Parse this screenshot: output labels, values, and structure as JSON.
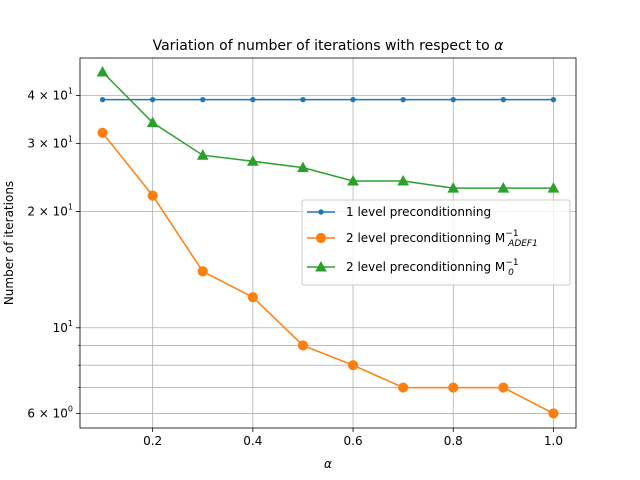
{
  "chart_data": {
    "type": "line",
    "title": "Variation of number of iterations with respect to",
    "title_symbol": "α",
    "xlabel": "α",
    "ylabel": "Number of iterations",
    "xscale": "linear",
    "yscale": "log",
    "xlim": [
      0.055,
      1.045
    ],
    "ylim": [
      5.5,
      50
    ],
    "xticks": [
      0.2,
      0.4,
      0.6,
      0.8,
      1.0
    ],
    "xtick_labels": [
      "0.2",
      "0.4",
      "0.6",
      "0.8",
      "1.0"
    ],
    "yticks": [
      {
        "value": 6,
        "mantissa": "6",
        "exp": "0"
      },
      {
        "value": 10,
        "mantissa": "10",
        "exp": "1"
      },
      {
        "value": 20,
        "mantissa": "2",
        "exp": "1"
      },
      {
        "value": 30,
        "mantissa": "3",
        "exp": "1"
      },
      {
        "value": 40,
        "mantissa": "4",
        "exp": "1"
      }
    ],
    "y_minor_grid": [
      7,
      8,
      9
    ],
    "grid": true,
    "legend_position": "center-right",
    "x": [
      0.1,
      0.2,
      0.3,
      0.4,
      0.5,
      0.6,
      0.7,
      0.8,
      0.9,
      1.0
    ],
    "series": [
      {
        "name": "1 level preconditionning",
        "name_sup": "",
        "name_sub": "",
        "color": "#1f77b4",
        "marker": "dot",
        "values": [
          39,
          39,
          39,
          39,
          39,
          39,
          39,
          39,
          39,
          39
        ]
      },
      {
        "name": "2 level preconditionning M",
        "name_sup": "−1",
        "name_sub": "ADEF1",
        "color": "#ff7f0e",
        "marker": "circle",
        "values": [
          32,
          22,
          14,
          12,
          9,
          8,
          7,
          7,
          7,
          6
        ]
      },
      {
        "name": "2 level preconditionning M",
        "name_sup": "−1",
        "name_sub": "0",
        "color": "#2ca02c",
        "marker": "triangle",
        "values": [
          46,
          34,
          28,
          27,
          26,
          24,
          24,
          23,
          23,
          23
        ]
      }
    ]
  }
}
